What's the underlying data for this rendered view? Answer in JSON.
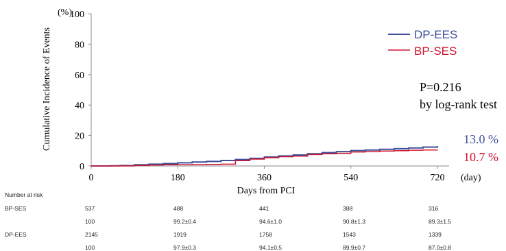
{
  "chart_data": {
    "type": "line",
    "title": "",
    "xlabel": "Days from PCI",
    "ylabel": "Cumulative Incidence of Events",
    "y_unit": "(%)",
    "x_unit": "(day)",
    "xlim": [
      0,
      720
    ],
    "ylim": [
      0,
      100
    ],
    "x_ticks": [
      0,
      180,
      360,
      540,
      720
    ],
    "y_ticks": [
      0,
      20,
      40,
      60,
      80,
      100
    ],
    "grid": false,
    "legend_position": "top-right",
    "colors": {
      "DP-EES": "#3d4f9a",
      "BP-SES": "#d0142c"
    },
    "series": [
      {
        "name": "DP-EES",
        "x": [
          0,
          40,
          60,
          90,
          120,
          150,
          180,
          210,
          240,
          270,
          300,
          330,
          360,
          390,
          420,
          450,
          480,
          510,
          540,
          570,
          600,
          630,
          660,
          690,
          720
        ],
        "y": [
          0,
          0.1,
          0.3,
          0.8,
          1.2,
          1.6,
          2.1,
          2.6,
          3.0,
          3.6,
          4.2,
          5.0,
          5.9,
          6.6,
          7.2,
          8.0,
          8.8,
          9.4,
          10.1,
          10.5,
          10.9,
          11.3,
          11.8,
          12.4,
          13.0
        ]
      },
      {
        "name": "BP-SES",
        "x": [
          0,
          60,
          90,
          120,
          150,
          180,
          210,
          240,
          270,
          300,
          330,
          360,
          390,
          420,
          450,
          480,
          510,
          540,
          570,
          600,
          630,
          660,
          690,
          720
        ],
        "y": [
          0,
          0,
          0.3,
          0.6,
          0.8,
          0.8,
          0.9,
          1.0,
          1.2,
          3.5,
          4.5,
          5.4,
          6.1,
          6.5,
          7.5,
          8.0,
          8.3,
          9.2,
          9.4,
          9.8,
          10.0,
          10.3,
          10.5,
          10.7
        ]
      }
    ],
    "annotations": {
      "p_value": "P=0.216",
      "test": "by log-rank test",
      "end_value_dp_ees": "13.0 %",
      "end_value_bp_ses": "10.7 %"
    }
  },
  "risk_table": {
    "title": "Number at risk",
    "rows": [
      {
        "label": "BP-SES",
        "values": [
          "537",
          "488",
          "441",
          "388",
          "316"
        ]
      },
      {
        "label": "",
        "values": [
          "100",
          "99.2±0.4",
          "94.6±1.0",
          "90.8±1.3",
          "89.3±1.5"
        ]
      },
      {
        "label": "DP-EES",
        "values": [
          "2145",
          "1919",
          "1758",
          "1543",
          "1339"
        ]
      },
      {
        "label": "",
        "values": [
          "100",
          "97.9±0.3",
          "94.1±0.5",
          "89.9±0.7",
          "87.0±0.8"
        ]
      }
    ]
  }
}
